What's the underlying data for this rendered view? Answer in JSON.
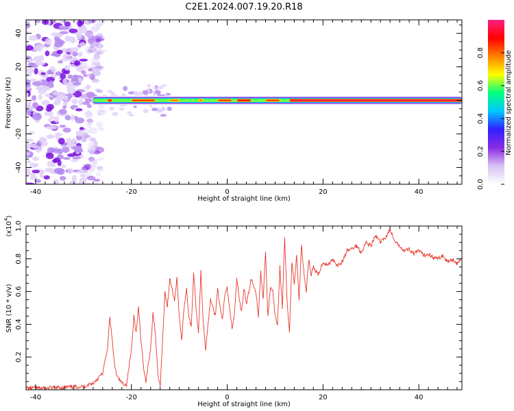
{
  "figure": {
    "title": "C2E1.2024.007.19.20.R18"
  },
  "colors": {
    "snr_line": "#e8372c",
    "axis": "#000000",
    "background": "#ffffff",
    "ridge_colormap": [
      "#ffffff",
      "#d9c2f2",
      "#8a2be2",
      "#3020ff",
      "#00c8ff",
      "#00ff80",
      "#ffff00",
      "#ff8000",
      "#ff0000",
      "#ff2080"
    ]
  },
  "chart_data": [
    {
      "type": "heatmap",
      "xlabel": "Height of straight line (km)",
      "ylabel": "Frequency (Hz)",
      "xlim": [
        -42,
        49
      ],
      "ylim": [
        -50,
        48
      ],
      "xticks": [
        -40,
        -20,
        0,
        20,
        40
      ],
      "yticks": [
        -40,
        -20,
        0,
        20,
        40
      ],
      "colorbar": {
        "label": "Normalized spectral amplitude",
        "range": [
          0.0,
          1.0
        ],
        "ticks": [
          "0.0",
          "0.2",
          "0.4",
          "0.6",
          "0.8"
        ]
      },
      "ridge": {
        "frequency": 0,
        "start_km": -28,
        "peak_segments": [
          {
            "from": -25,
            "to": -24,
            "amplitude": 0.9
          },
          {
            "from": -20,
            "to": -15,
            "amplitude": 0.85
          },
          {
            "from": -12,
            "to": -10,
            "amplitude": 0.8
          },
          {
            "from": -6,
            "to": -5,
            "amplitude": 0.8
          },
          {
            "from": -2,
            "to": 1,
            "amplitude": 0.85
          },
          {
            "from": 2,
            "to": 5,
            "amplitude": 0.9
          },
          {
            "from": 8,
            "to": 11,
            "amplitude": 0.85
          },
          {
            "from": 13,
            "to": 49,
            "amplitude": 0.95
          }
        ]
      },
      "noise_region": {
        "from_km": -42,
        "to_km": -28,
        "frequency_range": [
          -50,
          48
        ]
      }
    },
    {
      "type": "line",
      "xlabel": "Height of straight line (km)",
      "ylabel": "SNR (10 * v/v)",
      "y_multiplier": "(x10",
      "y_multiplier_exp": "4",
      "y_multiplier_close": ")",
      "xlim": [
        -42,
        49
      ],
      "ylim": [
        0,
        1.0
      ],
      "xticks": [
        -40,
        -20,
        0,
        20,
        40
      ],
      "yticks": [
        0.2,
        0.4,
        0.6,
        0.8,
        1.0
      ],
      "ytick_labels": [
        "0.2",
        "0.4",
        "0.6",
        "0.8",
        "1.0"
      ],
      "series": [
        {
          "x": [
            -42,
            -38,
            -34,
            -30,
            -28,
            -26,
            -25,
            -24.5,
            -24,
            -23.5,
            -23,
            -22,
            -21,
            -20,
            -19.5,
            -19,
            -18.5,
            -18,
            -17.5,
            -17,
            -16,
            -15.5,
            -15,
            -14.5,
            -14,
            -13.5,
            -13,
            -12.5,
            -12,
            -11,
            -10.5,
            -10,
            -9.5,
            -9,
            -8.5,
            -8,
            -7.5,
            -7,
            -6.5,
            -6,
            -5.5,
            -5,
            -4.5,
            -4,
            -3.5,
            -3,
            -2.5,
            -2,
            -1.5,
            -1,
            -0.5,
            0,
            0.5,
            1,
            1.5,
            2,
            2.5,
            3,
            3.5,
            4,
            5,
            6,
            6.5,
            7,
            7.5,
            8,
            8.5,
            9,
            9.5,
            10,
            10.5,
            11,
            11.5,
            12,
            12.5,
            13,
            13.5,
            14,
            14.5,
            15,
            15.5,
            16,
            16.5,
            17,
            17.5,
            18,
            19,
            20,
            21,
            22,
            23,
            24,
            25,
            26,
            27,
            28,
            29,
            30,
            31,
            32,
            33,
            34,
            35,
            36,
            37,
            38,
            39,
            40,
            41,
            42,
            43,
            44,
            45,
            46,
            47,
            48,
            49
          ],
          "values": [
            0.01,
            0.01,
            0.015,
            0.02,
            0.04,
            0.1,
            0.25,
            0.44,
            0.3,
            0.15,
            0.08,
            0.04,
            0.03,
            0.25,
            0.45,
            0.35,
            0.5,
            0.3,
            0.15,
            0.05,
            0.25,
            0.47,
            0.35,
            0.1,
            0.02,
            0.3,
            0.6,
            0.5,
            0.68,
            0.55,
            0.68,
            0.45,
            0.3,
            0.5,
            0.62,
            0.45,
            0.38,
            0.72,
            0.5,
            0.35,
            0.72,
            0.42,
            0.25,
            0.4,
            0.55,
            0.5,
            0.45,
            0.62,
            0.5,
            0.42,
            0.58,
            0.62,
            0.5,
            0.38,
            0.45,
            0.68,
            0.55,
            0.48,
            0.62,
            0.52,
            0.68,
            0.6,
            0.45,
            0.72,
            0.55,
            0.85,
            0.45,
            0.62,
            0.6,
            0.45,
            0.4,
            0.75,
            0.5,
            0.92,
            0.55,
            0.35,
            0.78,
            0.65,
            0.82,
            0.55,
            0.88,
            0.72,
            0.6,
            0.8,
            0.7,
            0.75,
            0.7,
            0.78,
            0.76,
            0.8,
            0.76,
            0.78,
            0.85,
            0.86,
            0.88,
            0.84,
            0.9,
            0.88,
            0.94,
            0.9,
            0.93,
            0.98,
            0.9,
            0.88,
            0.85,
            0.86,
            0.83,
            0.85,
            0.82,
            0.83,
            0.81,
            0.8,
            0.82,
            0.78,
            0.8,
            0.77,
            0.8
          ]
        }
      ]
    }
  ]
}
